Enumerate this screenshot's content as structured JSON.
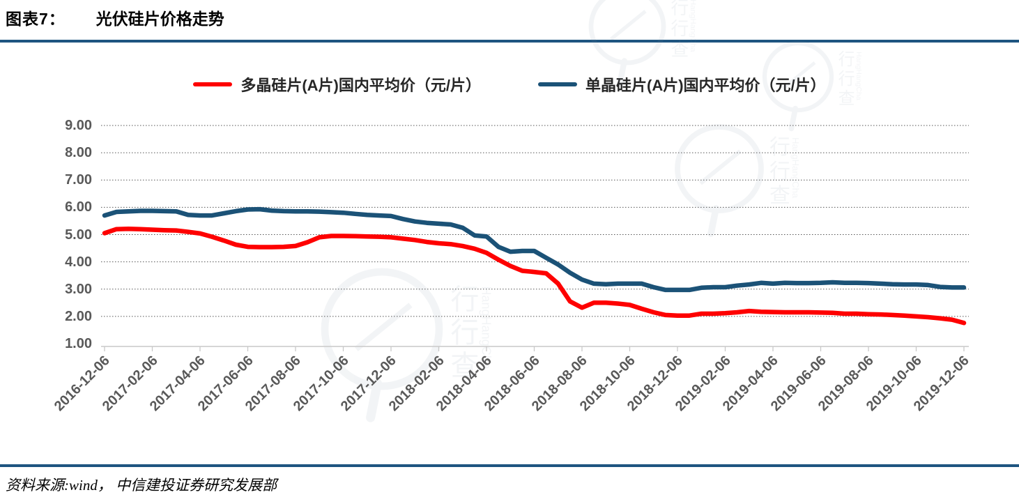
{
  "page": {
    "figure_label": "图表7：",
    "title": "光伏硅片价格走势",
    "source_note": "资料来源:wind， 中信建投证券研究发展部",
    "watermark_text": "行行查",
    "watermark_subtext": "HangHangCha"
  },
  "colors": {
    "header_rule": "#1E5580",
    "footer_rule": "#1E5580",
    "poly_series": "#FE0000",
    "mono_series": "#1B5277",
    "axis_text": "#595959",
    "gridline": "#555555",
    "axis_line": "#C9C9C9",
    "watermark": "#7E8DA0"
  },
  "chart_data": {
    "type": "line",
    "title": "光伏硅片价格走势",
    "ylim": [
      1.0,
      9.0
    ],
    "grid": "horizontal-dotted",
    "legend_position": "top-center",
    "y_tick_labels": [
      "9.00",
      "8.00",
      "7.00",
      "6.00",
      "5.00",
      "4.00",
      "3.00",
      "2.00",
      "1.00"
    ],
    "y_tick_values": [
      9,
      8,
      7,
      6,
      5,
      4,
      3,
      2,
      1
    ],
    "x_tick_labels": [
      "2016-12-06",
      "2017-02-06",
      "2017-04-06",
      "2017-06-06",
      "2017-08-06",
      "2017-10-06",
      "2017-12-06",
      "2018-02-06",
      "2018-04-06",
      "2018-06-06",
      "2018-08-06",
      "2018-10-06",
      "2018-12-06",
      "2019-02-06",
      "2019-04-06",
      "2019-06-06",
      "2019-08-06",
      "2019-10-06",
      "2019-12-06"
    ],
    "x": [
      "2016-12-06",
      "2016-12-21",
      "2017-01-06",
      "2017-01-21",
      "2017-02-06",
      "2017-02-21",
      "2017-03-06",
      "2017-03-21",
      "2017-04-06",
      "2017-04-21",
      "2017-05-06",
      "2017-05-21",
      "2017-06-06",
      "2017-06-21",
      "2017-07-06",
      "2017-07-21",
      "2017-08-06",
      "2017-08-21",
      "2017-09-06",
      "2017-09-21",
      "2017-10-06",
      "2017-10-21",
      "2017-11-06",
      "2017-11-21",
      "2017-12-06",
      "2017-12-21",
      "2018-01-06",
      "2018-01-21",
      "2018-02-06",
      "2018-02-21",
      "2018-03-06",
      "2018-03-21",
      "2018-04-06",
      "2018-04-21",
      "2018-05-06",
      "2018-05-21",
      "2018-06-06",
      "2018-06-21",
      "2018-07-06",
      "2018-07-21",
      "2018-08-06",
      "2018-08-21",
      "2018-09-06",
      "2018-09-21",
      "2018-10-06",
      "2018-10-21",
      "2018-11-06",
      "2018-11-21",
      "2018-12-06",
      "2018-12-21",
      "2019-01-06",
      "2019-01-21",
      "2019-02-06",
      "2019-02-21",
      "2019-03-06",
      "2019-03-21",
      "2019-04-06",
      "2019-04-21",
      "2019-05-06",
      "2019-05-21",
      "2019-06-06",
      "2019-06-21",
      "2019-07-06",
      "2019-07-21",
      "2019-08-06",
      "2019-08-21",
      "2019-09-06",
      "2019-09-21",
      "2019-10-06",
      "2019-10-21",
      "2019-11-06",
      "2019-11-21",
      "2019-12-06"
    ],
    "series": [
      {
        "name": "多晶硅片(A片)国内平均价（元/片）",
        "color": "#FE0000",
        "values": [
          5.05,
          5.2,
          5.21,
          5.2,
          5.18,
          5.16,
          5.15,
          5.1,
          5.04,
          4.92,
          4.78,
          4.63,
          4.55,
          4.54,
          4.54,
          4.55,
          4.58,
          4.72,
          4.9,
          4.95,
          4.95,
          4.94,
          4.93,
          4.92,
          4.9,
          4.85,
          4.8,
          4.73,
          4.68,
          4.65,
          4.58,
          4.48,
          4.33,
          4.08,
          3.85,
          3.67,
          3.63,
          3.58,
          3.2,
          2.55,
          2.32,
          2.5,
          2.5,
          2.47,
          2.42,
          2.28,
          2.15,
          2.05,
          2.03,
          2.03,
          2.1,
          2.1,
          2.12,
          2.15,
          2.2,
          2.17,
          2.16,
          2.15,
          2.15,
          2.15,
          2.14,
          2.13,
          2.1,
          2.1,
          2.08,
          2.07,
          2.05,
          2.03,
          2.0,
          1.97,
          1.93,
          1.88,
          1.76
        ]
      },
      {
        "name": "单晶硅片(A片)国内平均价（元/片）",
        "color": "#1B5277",
        "values": [
          5.7,
          5.83,
          5.85,
          5.87,
          5.87,
          5.86,
          5.85,
          5.72,
          5.7,
          5.7,
          5.78,
          5.86,
          5.92,
          5.93,
          5.88,
          5.86,
          5.85,
          5.85,
          5.84,
          5.82,
          5.8,
          5.76,
          5.72,
          5.7,
          5.68,
          5.57,
          5.48,
          5.43,
          5.4,
          5.37,
          5.25,
          4.97,
          4.93,
          4.55,
          4.37,
          4.4,
          4.4,
          4.15,
          3.9,
          3.6,
          3.35,
          3.2,
          3.18,
          3.2,
          3.2,
          3.2,
          3.07,
          2.97,
          2.97,
          2.97,
          3.05,
          3.07,
          3.07,
          3.13,
          3.17,
          3.23,
          3.2,
          3.23,
          3.22,
          3.22,
          3.23,
          3.25,
          3.23,
          3.23,
          3.22,
          3.2,
          3.18,
          3.17,
          3.17,
          3.15,
          3.08,
          3.06,
          3.06
        ]
      }
    ]
  }
}
